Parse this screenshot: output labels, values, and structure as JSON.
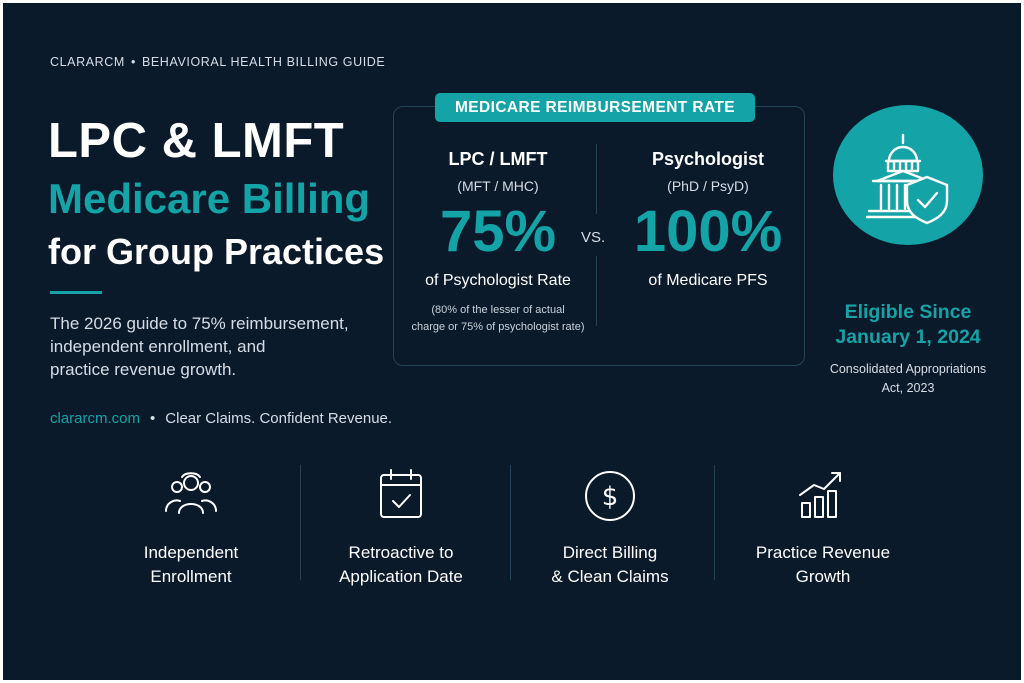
{
  "header": {
    "brand": "CLARARCM",
    "separator": "•",
    "guide": "BEHAVIORAL HEALTH BILLING GUIDE"
  },
  "title": {
    "line1": "LPC & LMFT",
    "line2": "Medicare Billing",
    "line3": "for Group Practices"
  },
  "subtitle": {
    "line1": "The 2026 guide to 75% reimbursement,",
    "line2": "independent enrollment, and",
    "line3": "practice revenue growth."
  },
  "footer_line": {
    "site": "clararcm.com",
    "separator": "•",
    "tagline": "Clear Claims. Confident Revenue."
  },
  "rate_box": {
    "header": "MEDICARE REIMBURSEMENT RATE",
    "vs": "VS.",
    "left": {
      "role": "LPC / LMFT",
      "sub": "(MFT / MHC)",
      "rate": "75%",
      "of": "of Psychologist Rate",
      "note_line1": "(80% of the lesser of actual",
      "note_line2": "charge or 75% of psychologist rate)"
    },
    "right": {
      "role": "Psychologist",
      "sub": "(PhD / PsyD)",
      "rate": "100%",
      "of": "of Medicare PFS"
    }
  },
  "eligibility": {
    "line1": "Eligible Since",
    "line2": "January 1, 2024",
    "act_line1": "Consolidated Appropriations",
    "act_line2": "Act, 2023"
  },
  "features": [
    {
      "icon": "group-people-icon",
      "line1": "Independent",
      "line2": "Enrollment"
    },
    {
      "icon": "calendar-check-icon",
      "line1": "Retroactive to",
      "line2": "Application Date"
    },
    {
      "icon": "dollar-circle-icon",
      "line1": "Direct Billing",
      "line2": "& Clean Claims"
    },
    {
      "icon": "growth-chart-icon",
      "line1": "Practice Revenue",
      "line2": "Growth"
    }
  ],
  "colors": {
    "background": "#0b1a2b",
    "accent": "#14a3a6",
    "text": "#ffffff"
  }
}
